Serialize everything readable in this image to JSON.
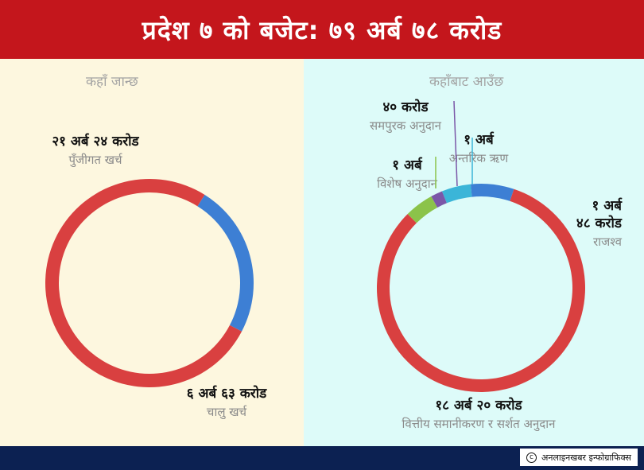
{
  "header": {
    "title": "प्रदेश ७ को बजेट: ७९ अर्ब ७८ करोड"
  },
  "left_panel": {
    "heading": "कहाँ जान्छ"
  },
  "right_panel": {
    "heading": "कहाँबाट आउँछ"
  },
  "footer": {
    "credit": "अनलाइनखबर इन्फोग्राफिक्स",
    "copyright_symbol": "c"
  },
  "chart_data": [
    {
      "type": "pie",
      "title": "कहाँ जान्छ",
      "unit": "करोड",
      "slices": [
        {
          "label": "पुँजीगत खर्च",
          "value_text": "२१ अर्ब २४ करोड",
          "value": 2124,
          "color": "#d94040"
        },
        {
          "label": "चालु खर्च",
          "value_text": "६ अर्ब ६३ करोड",
          "value": 663,
          "color": "#3d7fd4"
        }
      ]
    },
    {
      "type": "pie",
      "title": "कहाँबाट आउँछ",
      "unit": "करोड",
      "slices": [
        {
          "label": "अन्तरिक ऋण",
          "value_text": "१ अर्ब",
          "value": 100,
          "color": "#3bb5d8"
        },
        {
          "label": "राजश्व",
          "value_text": "१ अर्ब ४८ करोड",
          "value": 148,
          "color": "#3d7fd4"
        },
        {
          "label": "वित्तीय समानीकरण र सर्शत अनुदान",
          "value_text": "१८ अर्ब २० करोड",
          "value": 1820,
          "color": "#d94040"
        },
        {
          "label": "विशेष अनुदान",
          "value_text": "१ अर्ब",
          "value": 100,
          "color": "#8bc34a"
        },
        {
          "label": "समपुरक अनुदान",
          "value_text": "४० करोड",
          "value": 40,
          "color": "#7b57a8"
        }
      ]
    }
  ]
}
